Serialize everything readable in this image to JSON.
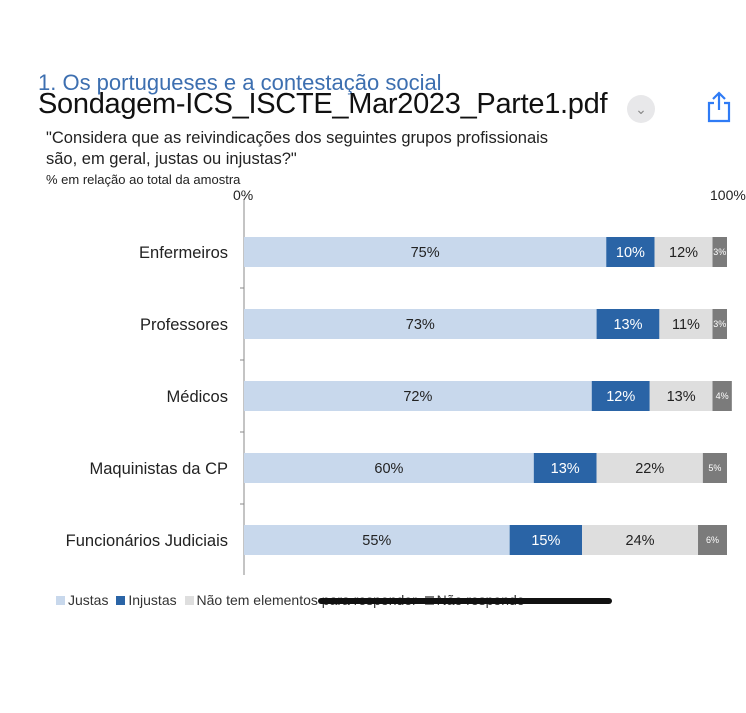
{
  "header": {
    "section_partial": "1. Os portugueses e a contestação social",
    "file_title": "Sondagem-ICS_ISCTE_Mar2023_Parte1.pdf",
    "chevron_icon": "chevron-down-icon",
    "share_icon": "share-icon"
  },
  "chart_data": {
    "type": "bar",
    "orientation": "horizontal-stacked",
    "title": "\"Considera que as reivindicações dos seguintes grupos profissionais são, em geral, justas ou injustas?\"",
    "title_line1": "\"Considera que as reivindicações dos seguintes grupos profissionais",
    "title_line2": "são, em geral, justas ou injustas?\"",
    "subtitle": "% em relação ao total da amostra",
    "xlim": [
      0,
      100
    ],
    "tick_labels": [
      "0%",
      "100%"
    ],
    "categories": [
      "Enfermeiros",
      "Professores",
      "Médicos",
      "Maquinistas da CP",
      "Funcionários Judiciais"
    ],
    "series": [
      {
        "name": "Justas",
        "color": "#c8d8ec",
        "values": [
          75,
          73,
          72,
          60,
          55
        ],
        "labels": [
          "75%",
          "73%",
          "72%",
          "60%",
          "55%"
        ]
      },
      {
        "name": "Injustas",
        "color": "#2a64a6",
        "values": [
          10,
          13,
          12,
          13,
          15
        ],
        "labels": [
          "10%",
          "13%",
          "12%",
          "13%",
          "15%"
        ]
      },
      {
        "name": "Não tem elementos para responder",
        "color": "#dedede",
        "values": [
          12,
          11,
          13,
          22,
          24
        ],
        "labels": [
          "12%",
          "11%",
          "13%",
          "22%",
          "24%"
        ]
      },
      {
        "name": "Não responde",
        "color": "#7b7b7b",
        "values": [
          3,
          3,
          4,
          5,
          6
        ],
        "labels": [
          "3%",
          "3%",
          "4%",
          "5%",
          "6%"
        ]
      }
    ],
    "legend_position": "bottom-left"
  }
}
